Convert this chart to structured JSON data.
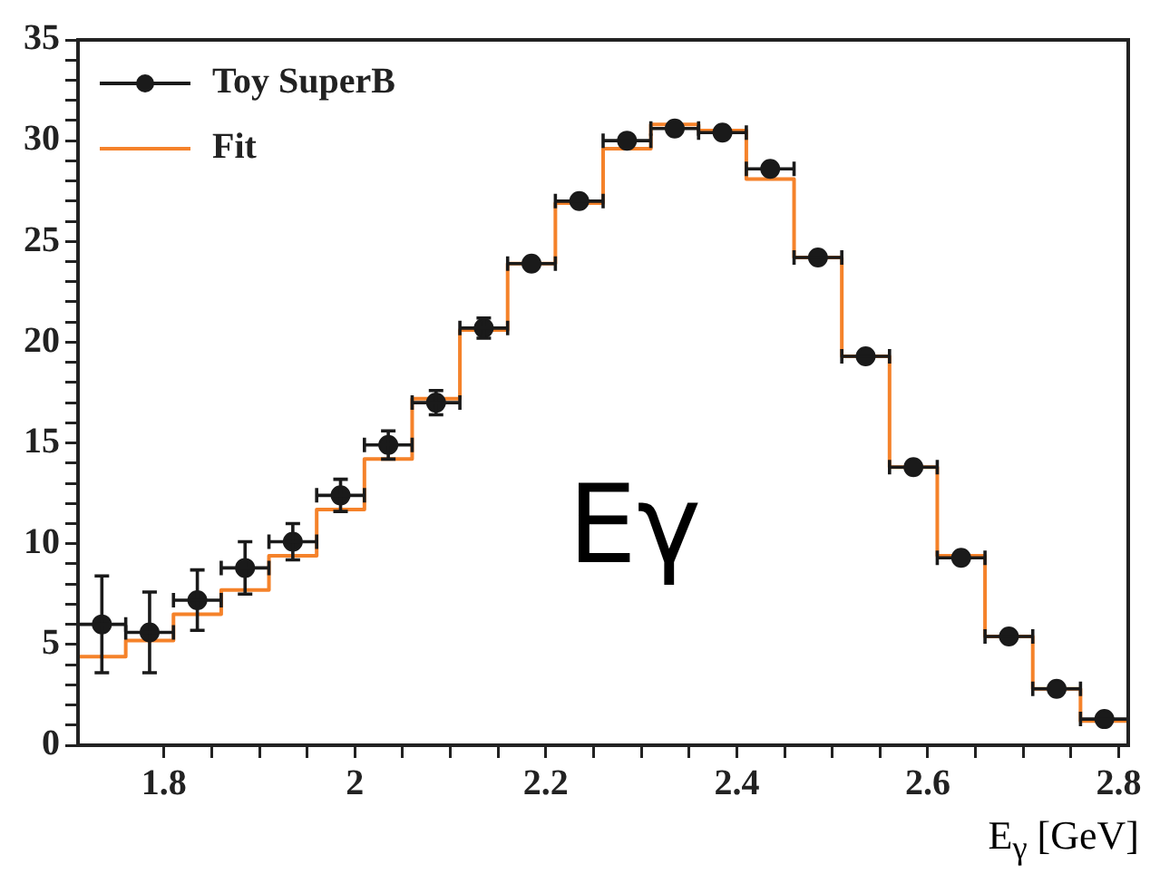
{
  "chart_data": {
    "type": "scatter",
    "xlabel": "E$_{γ}$ [GeV]",
    "legend": "top left",
    "grid": false,
    "marker": "circle",
    "xlim": [
      1.71,
      2.81
    ],
    "ylim": [
      0,
      35
    ],
    "xticks": [
      1.8,
      {
        "value": 1.85,
        "label": null
      },
      {
        "value": 1.9,
        "label": null
      },
      {
        "value": 1.95,
        "label": null
      },
      2,
      {
        "value": 2.05,
        "label": null
      },
      {
        "value": 2.1,
        "label": null
      },
      {
        "value": 2.15,
        "label": null
      },
      2.2,
      {
        "value": 2.25,
        "label": null
      },
      {
        "value": 2.3,
        "label": null
      },
      {
        "value": 2.35,
        "label": null
      },
      2.4,
      {
        "value": 2.45,
        "label": null
      },
      {
        "value": 2.5,
        "label": null
      },
      {
        "value": 2.55,
        "label": null
      },
      2.6,
      {
        "value": 2.65,
        "label": null
      },
      {
        "value": 2.7,
        "label": null
      },
      {
        "value": 2.75,
        "label": null
      },
      2.8
    ],
    "yticks": [
      0,
      {
        "value": 1,
        "label": null
      },
      {
        "value": 2,
        "label": null
      },
      {
        "value": 3,
        "label": null
      },
      {
        "value": 4,
        "label": null
      },
      5,
      {
        "value": 6,
        "label": null
      },
      {
        "value": 7,
        "label": null
      },
      {
        "value": 8,
        "label": null
      },
      {
        "value": 9,
        "label": null
      },
      10,
      {
        "value": 11,
        "label": null
      },
      {
        "value": 12,
        "label": null
      },
      {
        "value": 13,
        "label": null
      },
      {
        "value": 14,
        "label": null
      },
      15,
      {
        "value": 16,
        "label": null
      },
      {
        "value": 17,
        "label": null
      },
      {
        "value": 18,
        "label": null
      },
      {
        "value": 19,
        "label": null
      },
      20,
      {
        "value": 21,
        "label": null
      },
      {
        "value": 22,
        "label": null
      },
      {
        "value": 23,
        "label": null
      },
      {
        "value": 24,
        "label": null
      },
      25,
      {
        "value": 26,
        "label": null
      },
      {
        "value": 27,
        "label": null
      },
      {
        "value": 28,
        "label": null
      },
      {
        "value": 29,
        "label": null
      },
      30,
      {
        "value": 31,
        "label": null
      },
      {
        "value": 32,
        "label": null
      },
      {
        "value": 33,
        "label": null
      },
      {
        "value": 34,
        "label": null
      },
      35
    ],
    "annotations": [
      "Eγ"
    ],
    "series": [
      {
        "name": "Fit",
        "type": "histogram",
        "color": "#f5822a",
        "bins": [
          1.71,
          1.76,
          1.81,
          1.86,
          1.91,
          1.96,
          2.01,
          2.06,
          2.11,
          2.16,
          2.21,
          2.26,
          2.31,
          2.36,
          2.41,
          2.46,
          2.51,
          2.56,
          2.61,
          2.66,
          2.71,
          2.76,
          2.81
        ],
        "values": [
          4.4,
          5.2,
          6.5,
          7.7,
          9.4,
          11.7,
          14.2,
          17.2,
          20.6,
          23.9,
          26.9,
          29.6,
          30.8,
          30.5,
          28.1,
          24.2,
          19.3,
          13.8,
          9.4,
          5.4,
          2.8,
          1.2
        ]
      },
      {
        "name": "Toy SuperB",
        "color": "#1a1a1a",
        "x": [
          1.735,
          1.785,
          1.835,
          1.885,
          1.935,
          1.985,
          2.035,
          2.085,
          2.135,
          2.185,
          2.235,
          2.285,
          2.335,
          2.385,
          2.435,
          2.485,
          2.535,
          2.585,
          2.635,
          2.685,
          2.735,
          2.785
        ],
        "values": [
          6.0,
          5.6,
          7.2,
          8.8,
          10.1,
          12.4,
          14.9,
          17.0,
          20.7,
          23.9,
          27.0,
          30.0,
          30.6,
          30.4,
          28.6,
          24.2,
          19.3,
          13.8,
          9.3,
          5.4,
          2.8,
          1.3
        ],
        "errors": [
          2.4,
          2.0,
          1.5,
          1.3,
          0.9,
          0.8,
          0.7,
          0.6,
          0.5,
          null,
          null,
          null,
          null,
          null,
          null,
          null,
          null,
          null,
          null,
          null,
          null,
          null
        ],
        "xerrors": [
          0.025,
          0.025,
          0.025,
          0.025,
          0.025,
          0.025,
          0.025,
          0.025,
          0.025,
          0.025,
          0.025,
          0.025,
          0.025,
          0.025,
          0.025,
          0.025,
          0.025,
          0.025,
          0.025,
          0.025,
          0.025,
          0.025
        ]
      }
    ]
  }
}
